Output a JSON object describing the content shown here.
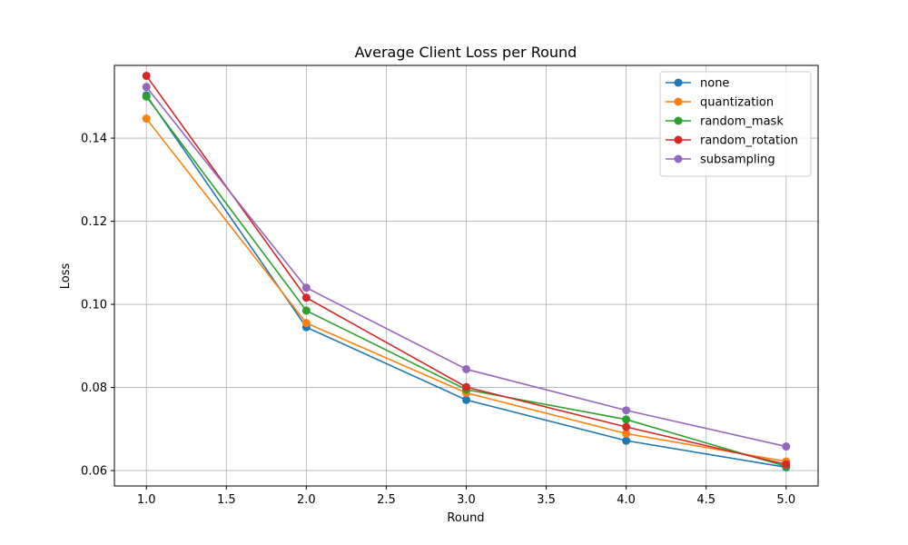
{
  "chart_data": {
    "type": "line",
    "title": "Average Client Loss per Round",
    "xlabel": "Round",
    "ylabel": "Loss",
    "x": [
      1.0,
      2.0,
      3.0,
      4.0,
      5.0
    ],
    "xlim": [
      0.8,
      5.2
    ],
    "ylim": [
      0.0563,
      0.1575
    ],
    "xticks": [
      1.0,
      1.5,
      2.0,
      2.5,
      3.0,
      3.5,
      4.0,
      4.5,
      5.0
    ],
    "xtick_labels": [
      "1.0",
      "1.5",
      "2.0",
      "2.5",
      "3.0",
      "3.5",
      "4.0",
      "4.5",
      "5.0"
    ],
    "yticks": [
      0.06,
      0.08,
      0.1,
      0.12,
      0.14
    ],
    "ytick_labels": [
      "0.06",
      "0.08",
      "0.10",
      "0.12",
      "0.14"
    ],
    "grid": true,
    "legend_position": "top-right",
    "series": [
      {
        "name": "none",
        "color": "#1f77b4",
        "values": [
          0.1503,
          0.0945,
          0.077,
          0.0672,
          0.0608
        ]
      },
      {
        "name": "quantization",
        "color": "#ff7f0e",
        "values": [
          0.1447,
          0.0955,
          0.0787,
          0.0689,
          0.0622
        ]
      },
      {
        "name": "random_mask",
        "color": "#2ca02c",
        "values": [
          0.15,
          0.0985,
          0.0795,
          0.0723,
          0.061
        ]
      },
      {
        "name": "random_rotation",
        "color": "#d62728",
        "values": [
          0.155,
          0.1016,
          0.0801,
          0.0705,
          0.0615
        ]
      },
      {
        "name": "subsampling",
        "color": "#9467bd",
        "values": [
          0.1523,
          0.104,
          0.0844,
          0.0745,
          0.0658
        ]
      }
    ]
  }
}
